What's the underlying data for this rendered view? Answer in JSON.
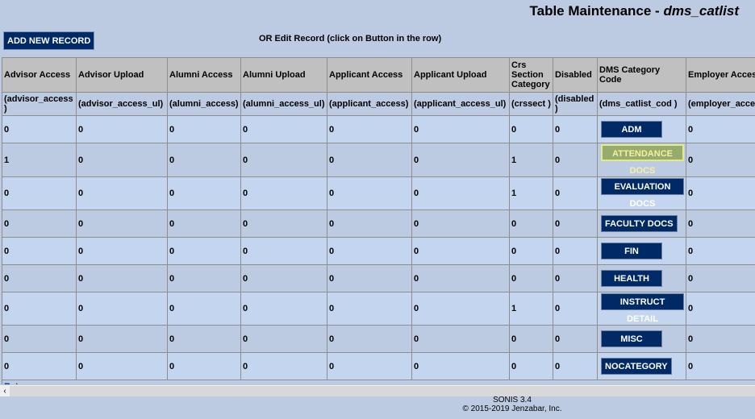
{
  "header": {
    "title": "Table Maintenance - ",
    "table_name": "dms_catlist"
  },
  "toolbar": {
    "add_label": "ADD NEW RECORD",
    "edit_hint": "OR Edit Record (click on Button in the row)"
  },
  "columns": [
    {
      "label": "Advisor Access",
      "field": "(advisor_access )"
    },
    {
      "label": "Advisor Upload",
      "field": "(advisor_access_ul)"
    },
    {
      "label": "Alumni Access",
      "field": "(alumni_access)"
    },
    {
      "label": "Alumni Upload",
      "field": "(alumni_access_ul)"
    },
    {
      "label": "Applicant Access",
      "field": "(applicant_access)"
    },
    {
      "label": "Applicant Upload",
      "field": "(applicant_access_ul)"
    },
    {
      "label": "Crs Section Category",
      "field": "(crssect )"
    },
    {
      "label": "Disabled",
      "field": "(disabled )"
    },
    {
      "label": "DMS Category Code",
      "field": "(dms_catlist_cod )"
    },
    {
      "label": "Employer Access",
      "field": "(employer_access)"
    }
  ],
  "rows": [
    {
      "v": [
        "0",
        "0",
        "0",
        "0",
        "0",
        "0",
        "0",
        "0"
      ],
      "code": "ADM",
      "emp": "0"
    },
    {
      "v": [
        "1",
        "0",
        "0",
        "0",
        "0",
        "0",
        "1",
        "0"
      ],
      "code": "ATTENDANCE DOCS",
      "emp": "0",
      "highlighted": true
    },
    {
      "v": [
        "0",
        "0",
        "0",
        "0",
        "0",
        "0",
        "1",
        "0"
      ],
      "code": "EVALUATION DOCS",
      "emp": "0"
    },
    {
      "v": [
        "0",
        "0",
        "0",
        "0",
        "0",
        "0",
        "0",
        "0"
      ],
      "code": "FACULTY DOCS",
      "emp": "0"
    },
    {
      "v": [
        "0",
        "0",
        "0",
        "0",
        "0",
        "0",
        "0",
        "0"
      ],
      "code": "FIN",
      "emp": "0"
    },
    {
      "v": [
        "0",
        "0",
        "0",
        "0",
        "0",
        "0",
        "0",
        "0"
      ],
      "code": "HEALTH",
      "emp": "0"
    },
    {
      "v": [
        "0",
        "0",
        "0",
        "0",
        "0",
        "0",
        "1",
        "0"
      ],
      "code": "INSTRUCT DETAIL",
      "emp": "0"
    },
    {
      "v": [
        "0",
        "0",
        "0",
        "0",
        "0",
        "0",
        "0",
        "0"
      ],
      "code": "MISC",
      "emp": "0"
    },
    {
      "v": [
        "0",
        "0",
        "0",
        "0",
        "0",
        "0",
        "0",
        "0"
      ],
      "code": "NOCATEGORY",
      "emp": "0"
    }
  ],
  "return_label": "Return",
  "footer": {
    "version": "SONIS 3.4",
    "copyright": "© 2015-2019 Jenzabar, Inc."
  },
  "colors": {
    "button": "#002a66",
    "highlight_button": "#97ab6c",
    "background": "#bccbe2",
    "header": "#c0c0c0"
  }
}
